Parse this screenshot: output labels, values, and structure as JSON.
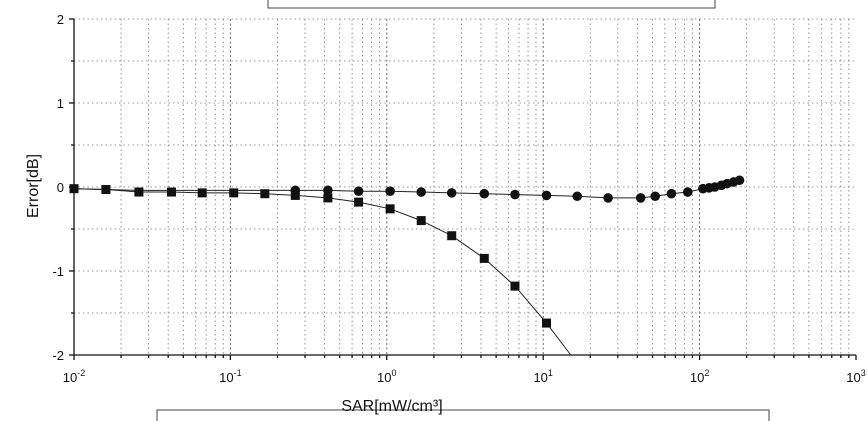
{
  "chart_data": {
    "type": "scatter",
    "title": "",
    "xlabel": "SAR[mW/cm³]",
    "ylabel": "Error[dB]",
    "xscale": "log",
    "xlim": [
      0.01,
      1000
    ],
    "ylim": [
      -2,
      2
    ],
    "grid": true,
    "x_tick_labels": [
      {
        "base": "10",
        "exp": "-2"
      },
      {
        "base": "10",
        "exp": "-1"
      },
      {
        "base": "10",
        "exp": "0"
      },
      {
        "base": "10",
        "exp": "1"
      },
      {
        "base": "10",
        "exp": "2"
      },
      {
        "base": "10",
        "exp": "3"
      }
    ],
    "y_tick_labels": [
      "2",
      "1",
      "0",
      "-1",
      "-2"
    ],
    "series": [
      {
        "marker": "square",
        "x": [
          0.01,
          0.016,
          0.026,
          0.042,
          0.066,
          0.105,
          0.166,
          0.26,
          0.42,
          0.66,
          1.05,
          1.66,
          2.6,
          4.2,
          6.6,
          10.5
        ],
        "y": [
          -0.02,
          -0.03,
          -0.06,
          -0.06,
          -0.07,
          -0.07,
          -0.08,
          -0.1,
          -0.13,
          -0.18,
          -0.26,
          -0.4,
          -0.58,
          -0.85,
          -1.18,
          -1.62
        ],
        "line": {
          "x": [
            0.01,
            0.016,
            0.026,
            0.042,
            0.066,
            0.105,
            0.166,
            0.26,
            0.42,
            0.66,
            1.05,
            1.66,
            2.6,
            4.2,
            6.6,
            10.5,
            16.5
          ],
          "y": [
            -0.02,
            -0.03,
            -0.06,
            -0.06,
            -0.07,
            -0.07,
            -0.08,
            -0.1,
            -0.13,
            -0.18,
            -0.26,
            -0.4,
            -0.58,
            -0.85,
            -1.18,
            -1.62,
            -2.1
          ]
        }
      },
      {
        "marker": "circle",
        "x": [
          0.26,
          0.42,
          0.66,
          1.05,
          1.66,
          2.6,
          4.2,
          6.6,
          10.5,
          16.5,
          26,
          42,
          52,
          66,
          84,
          105,
          115,
          125,
          138,
          150,
          165,
          180
        ],
        "y": [
          -0.04,
          -0.04,
          -0.05,
          -0.05,
          -0.06,
          -0.07,
          -0.08,
          -0.09,
          -0.1,
          -0.11,
          -0.13,
          -0.13,
          -0.11,
          -0.08,
          -0.06,
          -0.02,
          -0.01,
          0.0,
          0.02,
          0.04,
          0.06,
          0.08
        ],
        "line": {
          "x": [
            0.01,
            0.016,
            0.026,
            0.042,
            0.066,
            0.105,
            0.166,
            0.26,
            0.42,
            0.66,
            1.05,
            1.66,
            2.6,
            4.2,
            6.6,
            10.5,
            16.5,
            26,
            42,
            52,
            66,
            84,
            105,
            115,
            125,
            138,
            150,
            165,
            180
          ],
          "y": [
            -0.02,
            -0.03,
            -0.04,
            -0.04,
            -0.04,
            -0.04,
            -0.04,
            -0.04,
            -0.04,
            -0.05,
            -0.05,
            -0.06,
            -0.07,
            -0.08,
            -0.09,
            -0.1,
            -0.11,
            -0.13,
            -0.13,
            -0.11,
            -0.08,
            -0.06,
            -0.02,
            -0.01,
            0.0,
            0.02,
            0.04,
            0.06,
            0.08
          ]
        }
      }
    ]
  }
}
